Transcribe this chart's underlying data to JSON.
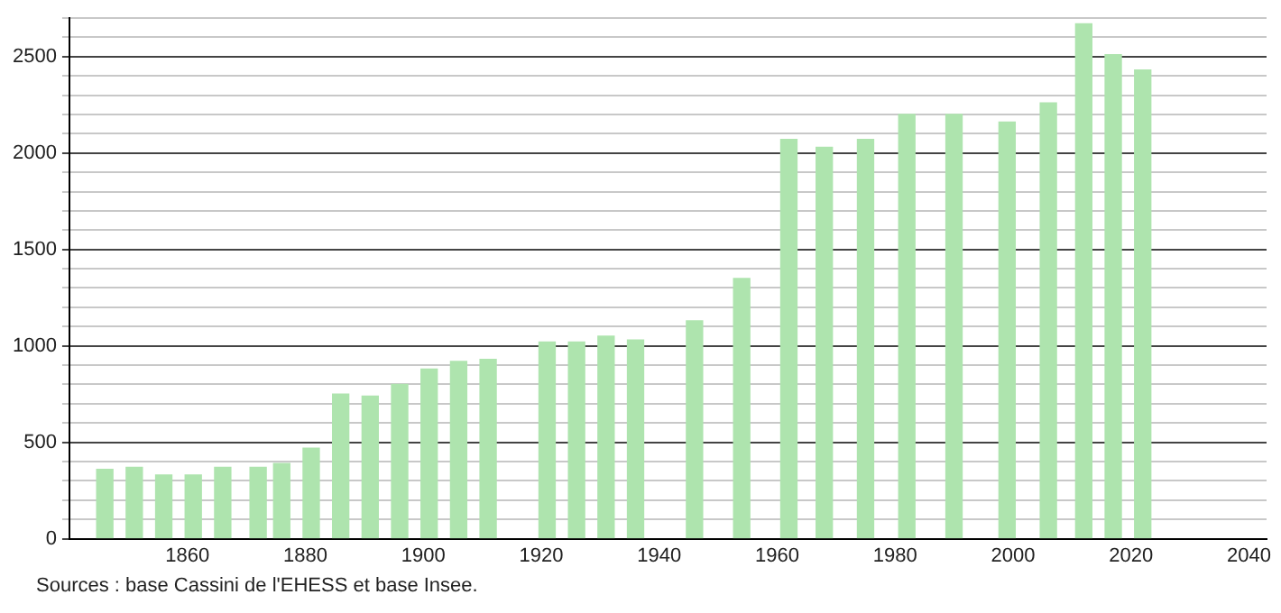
{
  "chart_data": {
    "type": "bar",
    "x": [
      1846,
      1851,
      1856,
      1861,
      1866,
      1872,
      1876,
      1881,
      1886,
      1891,
      1896,
      1901,
      1906,
      1911,
      1921,
      1926,
      1931,
      1936,
      1946,
      1954,
      1962,
      1968,
      1975,
      1982,
      1990,
      1999,
      2006,
      2012,
      2017,
      2022
    ],
    "values": [
      360,
      370,
      330,
      330,
      370,
      370,
      390,
      470,
      750,
      740,
      800,
      880,
      920,
      930,
      1020,
      1020,
      1050,
      1030,
      1130,
      1350,
      2070,
      2030,
      2070,
      2200,
      2200,
      2160,
      2260,
      2670,
      2510,
      2430
    ],
    "color": "#aee4ae",
    "xlim": [
      1840,
      2043
    ],
    "xticks": [
      1860,
      1880,
      1900,
      1920,
      1940,
      1960,
      1980,
      2000,
      2020,
      2040
    ],
    "ylim": [
      0,
      2700
    ],
    "yticks": [
      0,
      {
        "value": 100,
        "label": null
      },
      {
        "value": 200,
        "label": null
      },
      {
        "value": 300,
        "label": null
      },
      {
        "value": 400,
        "label": null
      },
      500,
      {
        "value": 600,
        "label": null
      },
      {
        "value": 700,
        "label": null
      },
      {
        "value": 800,
        "label": null
      },
      {
        "value": 900,
        "label": null
      },
      1000,
      {
        "value": 1100,
        "label": null
      },
      {
        "value": 1200,
        "label": null
      },
      {
        "value": 1300,
        "label": null
      },
      {
        "value": 1400,
        "label": null
      },
      1500,
      {
        "value": 1600,
        "label": null
      },
      {
        "value": 1700,
        "label": null
      },
      {
        "value": 1800,
        "label": null
      },
      {
        "value": 1900,
        "label": null
      },
      2000,
      {
        "value": 2100,
        "label": null
      },
      {
        "value": 2200,
        "label": null
      },
      {
        "value": 2300,
        "label": null
      },
      {
        "value": 2400,
        "label": null
      },
      2500,
      {
        "value": 2600,
        "label": null
      },
      {
        "value": 2700,
        "label": null
      }
    ],
    "grid": "y",
    "annotations": [
      "Sources : base Cassini de l'EHESS et base Insee."
    ]
  }
}
